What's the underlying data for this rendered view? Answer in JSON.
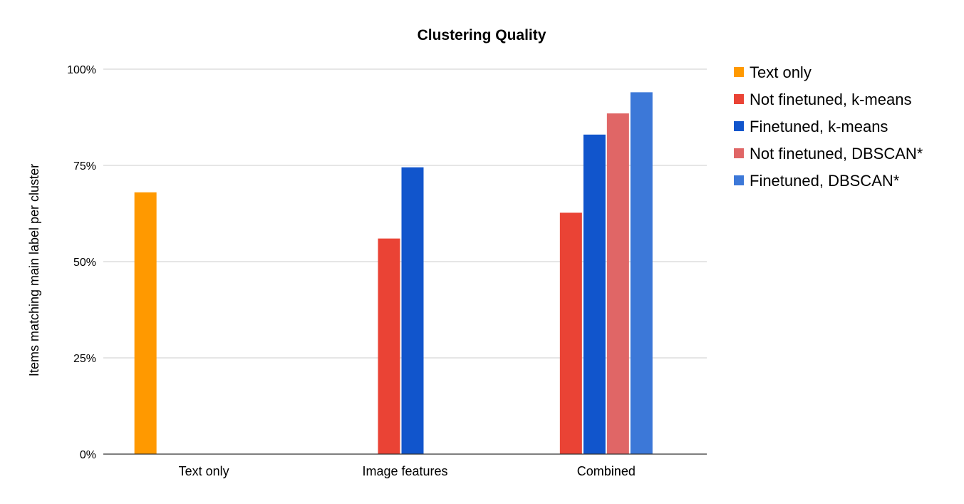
{
  "chart_data": {
    "type": "bar",
    "title": "Clustering Quality",
    "xlabel": "",
    "ylabel": "Items matching main label per cluster",
    "ylim": [
      0,
      100
    ],
    "y_ticks": [
      "0%",
      "25%",
      "50%",
      "75%",
      "100%"
    ],
    "grid": true,
    "legend_position": "right",
    "categories": [
      "Text only",
      "Image features",
      "Combined"
    ],
    "series": [
      {
        "name": "Text only",
        "color": "#ff9900",
        "values": [
          68,
          null,
          null
        ]
      },
      {
        "name": "Not finetuned, k-means",
        "color": "#ea4335",
        "values": [
          null,
          56,
          62.7
        ]
      },
      {
        "name": "Finetuned, k-means",
        "color": "#1155cc",
        "values": [
          null,
          74.5,
          83
        ]
      },
      {
        "name": "Not finetuned, DBSCAN*",
        "color": "#e06666",
        "values": [
          null,
          null,
          88.5
        ]
      },
      {
        "name": "Finetuned, DBSCAN*",
        "color": "#3c78d8",
        "values": [
          null,
          null,
          94
        ]
      }
    ]
  }
}
